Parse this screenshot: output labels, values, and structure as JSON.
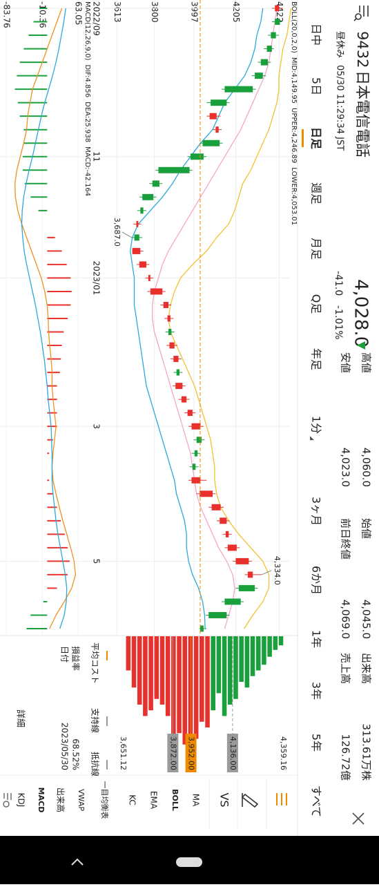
{
  "header": {
    "code": "9432",
    "name": "日本電信電話",
    "status": "昼休み",
    "timestamp": "05/30 11:29:34 JST",
    "price": "4,028.0",
    "change": "-41.0",
    "change_pct": "-1.01%",
    "color": "#19a03c",
    "stats": [
      {
        "label": "高値",
        "value": "4,060.0",
        "color": "#19a03c"
      },
      {
        "label": "安値",
        "value": "4,023.0",
        "color": "#19a03c"
      },
      {
        "label": "始値",
        "value": "4,045.0",
        "color": "#19a03c"
      },
      {
        "label": "前日終値",
        "value": "4,069.0",
        "color": "#222222"
      },
      {
        "label": "出来高",
        "value": "313.61万株",
        "color": "#222222"
      },
      {
        "label": "売上高",
        "value": "126.72億",
        "color": "#222222"
      }
    ]
  },
  "tabs": [
    "日中",
    "5日",
    "日足",
    "週足",
    "月足",
    "Q足",
    "年足",
    "1分",
    "3ヶ月",
    "6か月",
    "1年",
    "3年",
    "5年",
    "すべて"
  ],
  "active_tab": 2,
  "compare_button": "VS",
  "indicators": [
    "MA",
    "BOLL",
    "EMA",
    "KC",
    "一目均衡表",
    "VWAP",
    "出来高",
    "MACD",
    "KDJ"
  ],
  "active_indicators": [
    1,
    7
  ],
  "cost_panel": {
    "tabs": [
      "平均コスト",
      "支持線",
      "抵抗線"
    ],
    "rows": [
      [
        "損益率",
        "68.52%"
      ],
      [
        "日付",
        "2023/05/30"
      ]
    ],
    "button": "詳細"
  },
  "chart_data": [
    {
      "type": "candlestick",
      "legend": [
        {
          "text": "BOLL(20,0,2,0)",
          "color": "#777777"
        },
        {
          "text": "MID:4,149.95",
          "color": "#f08cb8"
        },
        {
          "text": "UPPER:4,246.89",
          "color": "#e8a800"
        },
        {
          "text": "LOWER:4,053.01",
          "color": "#29a9d9"
        }
      ],
      "categories": [
        "2022/09",
        null,
        null,
        null,
        null,
        null,
        null,
        null,
        null,
        null,
        null,
        "11",
        null,
        null,
        null,
        null,
        null,
        null,
        null,
        null,
        "2023/01",
        null,
        null,
        null,
        null,
        null,
        null,
        null,
        null,
        null,
        null,
        "3",
        null,
        null,
        null,
        null,
        null,
        null,
        null,
        null,
        null,
        "5",
        null,
        null,
        null,
        null,
        null
      ],
      "open": [
        4400,
        4425,
        4405,
        4385,
        4365,
        4340,
        4290,
        4160,
        4075,
        4105,
        4125,
        4045,
        3975,
        3825,
        3795,
        3745,
        3710,
        3725,
        3690,
        3725,
        3770,
        3780,
        3845,
        3865,
        3885,
        3875,
        3895,
        3925,
        3905,
        3935,
        3965,
        3985,
        4035,
        4015,
        4005,
        3985,
        4025,
        4085,
        4125,
        4155,
        4165,
        4205,
        4265,
        4300,
        4230,
        4160,
        4045
      ],
      "high": [
        4440,
        4435,
        4420,
        4395,
        4380,
        4355,
        4305,
        4175,
        4130,
        4135,
        4140,
        4060,
        3990,
        3840,
        3810,
        3760,
        3735,
        3740,
        3745,
        3775,
        3795,
        3855,
        3885,
        3895,
        3900,
        3915,
        3935,
        3940,
        3955,
        3975,
        4005,
        4045,
        4050,
        4030,
        4020,
        4060,
        4105,
        4145,
        4175,
        4185,
        4225,
        4285,
        4334,
        4315,
        4245,
        4175,
        4060
      ],
      "low": [
        4385,
        4385,
        4365,
        4345,
        4315,
        4285,
        4135,
        4060,
        4060,
        4090,
        4025,
        3965,
        3805,
        3775,
        3725,
        3715,
        3695,
        3687,
        3689,
        3712,
        3755,
        3765,
        3830,
        3850,
        3855,
        3860,
        3880,
        3895,
        3890,
        3920,
        3950,
        3970,
        3995,
        3985,
        3975,
        3970,
        4010,
        4070,
        4110,
        4140,
        4150,
        4190,
        4250,
        4205,
        4135,
        4055,
        4023
      ],
      "close": [
        4420,
        4400,
        4380,
        4360,
        4330,
        4300,
        4150,
        4080,
        4110,
        4120,
        4040,
        3980,
        3820,
        3790,
        3740,
        3730,
        3720,
        3700,
        3730,
        3760,
        3780,
        3840,
        3870,
        3880,
        3870,
        3900,
        3920,
        3910,
        3940,
        3960,
        3990,
        4030,
        4010,
        4000,
        3990,
        4030,
        4090,
        4130,
        4160,
        4170,
        4210,
        4270,
        4290,
        4220,
        4150,
        4070,
        4028
      ],
      "up_color": "#e8312c",
      "down_color": "#19a03c",
      "lines": [
        {
          "color": "#f3a6c8",
          "values": [
            4410,
            4400,
            4390,
            4380,
            4370,
            4350,
            4320,
            4290,
            4260,
            4230,
            4190,
            4150,
            4110,
            4070,
            4030,
            3990,
            3950,
            3910,
            3870,
            3840,
            3820,
            3800,
            3790,
            3790,
            3800,
            3820,
            3840,
            3860,
            3880,
            3900,
            3920,
            3940,
            3960,
            3980,
            3990,
            4000,
            4010,
            4030,
            4060,
            4090,
            4120,
            4160,
            4190,
            4200,
            4190,
            4170,
            4149.95
          ]
        },
        {
          "color": "#f2c230",
          "values": [
            4480,
            4470,
            4460,
            4440,
            4430,
            4420,
            4420,
            4410,
            4390,
            4370,
            4340,
            4310,
            4280,
            4240,
            4220,
            4200,
            4170,
            4110,
            4060,
            3990,
            3930,
            3900,
            3880,
            3870,
            3880,
            3910,
            3940,
            3970,
            4000,
            4020,
            4040,
            4060,
            4080,
            4090,
            4100,
            4100,
            4110,
            4130,
            4170,
            4220,
            4280,
            4340,
            4370,
            4370,
            4340,
            4290,
            4246.89
          ]
        },
        {
          "color": "#29a9d9",
          "values": [
            4340,
            4330,
            4310,
            4300,
            4280,
            4250,
            4200,
            4150,
            4120,
            4090,
            4030,
            3980,
            3930,
            3890,
            3840,
            3780,
            3720,
            3690,
            3680,
            3690,
            3700,
            3700,
            3700,
            3710,
            3720,
            3730,
            3740,
            3750,
            3760,
            3780,
            3800,
            3820,
            3840,
            3860,
            3880,
            3900,
            3910,
            3930,
            3950,
            3960,
            3960,
            3970,
            3990,
            4020,
            4040,
            4050,
            4053.01
          ]
        }
      ],
      "ylim": [
        3540,
        4475
      ],
      "yticks": [
        4422,
        4205,
        3997,
        3800,
        3613
      ],
      "grid": true,
      "current_price": 4028.0,
      "current_color": "#f08a00",
      "annotations": [
        {
          "value": 4334,
          "label": "4,334.0"
        },
        {
          "value": 3687,
          "label": "3,687.0"
        }
      ]
    },
    {
      "type": "macd",
      "legend": [
        {
          "text": "MACD(12,26,9,0)",
          "color": "#777777"
        },
        {
          "text": "DIF:4.856",
          "color": "#f0901e"
        },
        {
          "text": "DEA:25.938",
          "color": "#29a9d9"
        },
        {
          "text": "MACD:-42.164",
          "color": "#c060d0"
        }
      ],
      "dif": {
        "color": "#f0901e",
        "values": [
          30,
          20,
          10,
          0,
          -10,
          -20,
          -30,
          -35,
          -40,
          -42,
          -48,
          -55,
          -62,
          -66,
          -65,
          -60,
          -52,
          -42,
          -32,
          -22,
          -12,
          -5,
          0,
          2,
          3,
          5,
          8,
          10,
          10,
          12,
          15,
          18,
          15,
          12,
          10,
          12,
          18,
          25,
          32,
          40,
          48,
          55,
          58,
          50,
          35,
          18,
          4.856
        ]
      },
      "dea": {
        "color": "#29a9d9",
        "values": [
          38,
          34,
          29,
          24,
          18,
          11,
          3,
          -5,
          -12,
          -18,
          -24,
          -30,
          -37,
          -43,
          -48,
          -51,
          -52,
          -50,
          -47,
          -42,
          -36,
          -30,
          -24,
          -19,
          -14,
          -10,
          -6,
          -3,
          0,
          2,
          5,
          8,
          9,
          10,
          10,
          10,
          12,
          15,
          18,
          22,
          27,
          32,
          37,
          40,
          39,
          35,
          25.938
        ]
      },
      "histogram": {
        "up_color": "#e8312c",
        "down_color": "#19a03c",
        "values": [
          -16,
          -28,
          -38,
          -48,
          -56,
          -62,
          -66,
          -60,
          -56,
          -48,
          -48,
          -50,
          -50,
          -46,
          -34,
          -18,
          0,
          16,
          30,
          40,
          48,
          50,
          48,
          42,
          34,
          30,
          28,
          26,
          20,
          20,
          20,
          20,
          12,
          4,
          0,
          4,
          12,
          20,
          28,
          36,
          42,
          46,
          42,
          20,
          -8,
          -34,
          -42.164
        ]
      },
      "ylim": [
        -83.76,
        63.05
      ],
      "yticks": [
        63.05,
        -10.36,
        -83.76
      ]
    },
    {
      "type": "volume_profile",
      "prices": [
        4350,
        4325,
        4300,
        4275,
        4250,
        4225,
        4200,
        4175,
        4150,
        4125,
        4100,
        4075,
        4050,
        4025,
        4000,
        3975,
        3950,
        3925,
        3900,
        3875,
        3850,
        3825,
        3800,
        3775,
        3750,
        3725,
        3700,
        3675
      ],
      "values": [
        8,
        12,
        18,
        25,
        30,
        35,
        45,
        40,
        55,
        60,
        70,
        50,
        65,
        80,
        75,
        90,
        100,
        95,
        85,
        90,
        70,
        60,
        55,
        65,
        70,
        60,
        45,
        30
      ],
      "xlim": [
        0,
        100
      ],
      "ylim": [
        3651.12,
        4359.16
      ],
      "current_price": 4028.0,
      "up_color": "#19a03c",
      "down_color": "#e8312c",
      "yticks": [
        {
          "value": 4359.16,
          "label": "4,359.16"
        },
        {
          "value": 4136,
          "label": "4,136.00",
          "box": "#9a9a9a"
        },
        {
          "value": 3952,
          "label": "3,952.00",
          "box": "#f08a00"
        },
        {
          "value": 3872,
          "label": "3,872.00",
          "box": "#9a9a9a"
        },
        {
          "value": 3651.12,
          "label": "3,651.12"
        }
      ]
    }
  ]
}
